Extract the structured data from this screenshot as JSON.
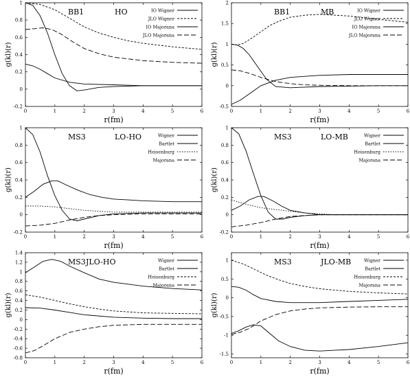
{
  "line_styles": {
    "solid": "",
    "long-dash": "7,3",
    "short-dash": "3,2",
    "dotted": "1.5,2"
  },
  "chart_data": [
    {
      "type": "line",
      "title_left": "BB1",
      "title_right": "HO",
      "xlabel": "r(fm)",
      "ylabel": "g(kl)(r)",
      "xlim": [
        0,
        6
      ],
      "ylim": [
        -0.2,
        1
      ],
      "xticks": [
        "0",
        "1",
        "2",
        "3",
        "4",
        "5",
        "6"
      ],
      "yticks": [
        "-0.2",
        "0",
        "0.2",
        "0.4",
        "0.6",
        "0.8",
        "1"
      ],
      "legend_placement": "top-right",
      "series": [
        {
          "name": "IO  Wigner",
          "style": "solid",
          "x": [
            0,
            0.25,
            0.5,
            0.75,
            1,
            1.25,
            1.5,
            1.75,
            2,
            2.5,
            3,
            4,
            5,
            6
          ],
          "y": [
            1.0,
            0.97,
            0.85,
            0.65,
            0.4,
            0.18,
            0.04,
            -0.02,
            -0.01,
            0.02,
            0.03,
            0.04,
            0.04,
            0.04
          ]
        },
        {
          "name": "JLO  Wigner",
          "style": "short-dash",
          "x": [
            0,
            0.5,
            1,
            1.5,
            2,
            2.5,
            3,
            3.5,
            4,
            5,
            6
          ],
          "y": [
            1.0,
            0.98,
            0.92,
            0.82,
            0.72,
            0.65,
            0.6,
            0.56,
            0.53,
            0.49,
            0.46
          ]
        },
        {
          "name": "IO  Majorana",
          "style": "solid",
          "x": [
            0,
            0.25,
            0.5,
            0.75,
            1,
            1.5,
            2,
            3,
            4,
            5,
            6
          ],
          "y": [
            0.29,
            0.27,
            0.23,
            0.18,
            0.13,
            0.08,
            0.06,
            0.05,
            0.04,
            0.04,
            0.04
          ]
        },
        {
          "name": "JLO  Majorana",
          "style": "long-dash",
          "x": [
            0,
            0.3,
            0.6,
            0.9,
            1.2,
            1.6,
            2,
            2.5,
            3,
            4,
            5,
            6
          ],
          "y": [
            0.69,
            0.7,
            0.71,
            0.69,
            0.64,
            0.55,
            0.47,
            0.41,
            0.37,
            0.33,
            0.31,
            0.3
          ]
        }
      ]
    },
    {
      "type": "line",
      "title_left": "BB1",
      "title_right": "MB",
      "xlabel": "r(fm)",
      "ylabel": "g(kl)(r)",
      "xlim": [
        0,
        6
      ],
      "ylim": [
        -0.5,
        2
      ],
      "xticks": [
        "0",
        "1",
        "2",
        "3",
        "4",
        "5",
        "6"
      ],
      "yticks": [
        "-0.5",
        "0",
        "0.5",
        "1",
        "1.5",
        "2"
      ],
      "legend_placement": "top-right",
      "series": [
        {
          "name": "IO  Wigner",
          "style": "solid",
          "x": [
            0,
            0.2,
            0.4,
            0.6,
            0.8,
            1,
            1.2,
            1.5,
            2,
            3,
            4,
            5,
            6
          ],
          "y": [
            1.0,
            0.98,
            0.9,
            0.75,
            0.55,
            0.35,
            0.15,
            -0.02,
            -0.05,
            -0.02,
            -0.01,
            0,
            0
          ]
        },
        {
          "name": "JLO  Wigner",
          "style": "short-dash",
          "x": [
            0,
            0.2,
            0.4,
            0.7,
            1,
            1.3,
            1.6,
            2,
            2.5,
            3,
            3.5,
            4,
            5,
            6
          ],
          "y": [
            1.0,
            0.98,
            1.02,
            1.15,
            1.3,
            1.45,
            1.55,
            1.65,
            1.7,
            1.72,
            1.7,
            1.68,
            1.6,
            1.53
          ]
        },
        {
          "name": "IO  Majorana",
          "style": "solid",
          "x": [
            0,
            0.3,
            0.6,
            1,
            1.5,
            2,
            3,
            4,
            5,
            6
          ],
          "y": [
            -0.45,
            -0.35,
            -0.2,
            0,
            0.13,
            0.2,
            0.25,
            0.27,
            0.27,
            0.27
          ]
        },
        {
          "name": "JLO  Majorana",
          "style": "long-dash",
          "x": [
            0,
            0.3,
            0.6,
            1,
            1.5,
            2,
            2.5,
            3,
            4,
            5,
            6
          ],
          "y": [
            0.38,
            0.36,
            0.3,
            0.2,
            0.1,
            0.05,
            0.02,
            0.01,
            0,
            0,
            0
          ]
        }
      ]
    },
    {
      "type": "line",
      "title_left": "MS3",
      "title_right": "LO-HO",
      "xlabel": "r(fm)",
      "ylabel": "g(kl)(r)",
      "xlim": [
        0,
        6
      ],
      "ylim": [
        -0.2,
        1
      ],
      "xticks": [
        "0",
        "1",
        "2",
        "3",
        "4",
        "5",
        "6"
      ],
      "yticks": [
        "-0.2",
        "0",
        "0.2",
        "0.4",
        "0.6",
        "0.8",
        "1"
      ],
      "legend_placement": "top-right",
      "series": [
        {
          "name": "Wigner",
          "style": "solid",
          "x": [
            0,
            0.25,
            0.5,
            0.75,
            1,
            1.25,
            1.5,
            1.75,
            2,
            2.5,
            3,
            4,
            5,
            6
          ],
          "y": [
            1.0,
            0.92,
            0.72,
            0.45,
            0.22,
            0.05,
            -0.05,
            -0.07,
            -0.05,
            -0.01,
            0.01,
            0.02,
            0.02,
            0.02
          ]
        },
        {
          "name": "Bartlet",
          "style": "solid",
          "x": [
            0,
            0.3,
            0.6,
            0.9,
            1.1,
            1.4,
            1.8,
            2.2,
            2.6,
            3,
            3.5,
            4,
            5,
            6
          ],
          "y": [
            0.2,
            0.27,
            0.35,
            0.39,
            0.39,
            0.34,
            0.28,
            0.23,
            0.2,
            0.18,
            0.17,
            0.16,
            0.15,
            0.15
          ]
        },
        {
          "name": "Heisenburg",
          "style": "dotted",
          "x": [
            0,
            0.5,
            1,
            1.5,
            2,
            2.5,
            3,
            4,
            5,
            6
          ],
          "y": [
            0.1,
            0.1,
            0.09,
            0.07,
            0.05,
            0.04,
            0.03,
            0.03,
            0.03,
            0.03
          ]
        },
        {
          "name": "Majorana",
          "style": "long-dash",
          "x": [
            0,
            0.5,
            1,
            1.5,
            2,
            2.5,
            3,
            4,
            5,
            6
          ],
          "y": [
            -0.13,
            -0.12,
            -0.1,
            -0.06,
            -0.03,
            -0.01,
            0,
            0.01,
            0.01,
            0.01
          ]
        }
      ]
    },
    {
      "type": "line",
      "title_left": "MS3",
      "title_right": "LO-MB",
      "xlabel": "r(fm)",
      "ylabel": "g(kl)(r)",
      "xlim": [
        0,
        6
      ],
      "ylim": [
        -0.2,
        1
      ],
      "xticks": [
        "0",
        "1",
        "2",
        "3",
        "4",
        "5",
        "6"
      ],
      "yticks": [
        "-0.2",
        "0",
        "0.2",
        "0.4",
        "0.6",
        "0.8",
        "1"
      ],
      "legend_placement": "top-right",
      "series": [
        {
          "name": "Wigner",
          "style": "solid",
          "x": [
            0,
            0.25,
            0.5,
            0.75,
            1,
            1.25,
            1.5,
            1.75,
            2,
            2.5,
            3,
            3.5,
            4,
            5,
            6
          ],
          "y": [
            1.0,
            0.93,
            0.73,
            0.47,
            0.22,
            0.03,
            -0.05,
            -0.05,
            -0.03,
            -0.01,
            0,
            0,
            0,
            0,
            0
          ]
        },
        {
          "name": "Bartlet",
          "style": "solid",
          "x": [
            0,
            0.3,
            0.6,
            0.9,
            1.1,
            1.4,
            1.7,
            2,
            2.5,
            3,
            3.5,
            4,
            5,
            6
          ],
          "y": [
            0.05,
            0.1,
            0.17,
            0.21,
            0.21,
            0.16,
            0.1,
            0.05,
            0.02,
            0,
            0,
            0,
            0,
            0
          ]
        },
        {
          "name": "Heisenburg",
          "style": "dotted",
          "x": [
            0,
            0.5,
            1,
            1.5,
            2,
            2.5,
            3,
            3.5,
            4,
            5,
            6
          ],
          "y": [
            0.17,
            0.12,
            0.08,
            0.06,
            0.04,
            0.02,
            0.01,
            0,
            0,
            0,
            0
          ]
        },
        {
          "name": "Majorana",
          "style": "long-dash",
          "x": [
            0,
            0.5,
            1,
            1.5,
            2,
            2.5,
            3,
            3.5,
            4,
            5,
            6
          ],
          "y": [
            -0.14,
            -0.12,
            -0.09,
            -0.05,
            -0.02,
            -0.01,
            0,
            0,
            0,
            0,
            0
          ]
        }
      ]
    },
    {
      "type": "line",
      "title_left": "MS3",
      "title_right": "JLO-HO",
      "xlabel": "r(fm)",
      "ylabel": "g(kl)(r)",
      "xlim": [
        0,
        6
      ],
      "ylim": [
        -0.8,
        1.4
      ],
      "xticks": [
        "0",
        "1",
        "2",
        "3",
        "4",
        "5",
        "6"
      ],
      "yticks": [
        "-0.8",
        "-0.6",
        "-0.4",
        "-0.2",
        "0",
        "0.2",
        "0.4",
        "0.6",
        "0.8",
        "1",
        "1.2",
        "1.4"
      ],
      "legend_placement": "top-right",
      "series": [
        {
          "name": "Wigner",
          "style": "solid",
          "x": [
            0,
            0.3,
            0.6,
            0.9,
            1.2,
            1.5,
            2,
            2.5,
            3,
            4,
            5,
            6
          ],
          "y": [
            0.98,
            1.1,
            1.22,
            1.26,
            1.22,
            1.12,
            0.98,
            0.85,
            0.78,
            0.7,
            0.65,
            0.62
          ]
        },
        {
          "name": "Bartlet",
          "style": "solid",
          "x": [
            0,
            0.5,
            1,
            1.5,
            2,
            3,
            4,
            5,
            6
          ],
          "y": [
            0.25,
            0.24,
            0.2,
            0.15,
            0.1,
            0.05,
            0.03,
            0.02,
            0.02
          ]
        },
        {
          "name": "Heisenburg",
          "style": "short-dash",
          "x": [
            0,
            0.5,
            1,
            1.5,
            2,
            2.5,
            3,
            4,
            5,
            6
          ],
          "y": [
            0.52,
            0.47,
            0.4,
            0.33,
            0.27,
            0.22,
            0.18,
            0.14,
            0.13,
            0.12
          ]
        },
        {
          "name": "Majorana",
          "style": "long-dash",
          "x": [
            0,
            0.3,
            0.6,
            1,
            1.5,
            2,
            2.5,
            3,
            4,
            5,
            6
          ],
          "y": [
            -0.7,
            -0.65,
            -0.55,
            -0.4,
            -0.27,
            -0.2,
            -0.15,
            -0.12,
            -0.1,
            -0.1,
            -0.1
          ]
        }
      ]
    },
    {
      "type": "line",
      "title_left": "MS3",
      "title_right": "JLO-MB",
      "xlabel": "r(fm)",
      "ylabel": "g(kl)(r)",
      "xlim": [
        0,
        6
      ],
      "ylim": [
        -1.6,
        1.2
      ],
      "xticks": [
        "0",
        "1",
        "2",
        "3",
        "4",
        "5",
        "6"
      ],
      "yticks": [
        "-1.5",
        "-1",
        "-0.5",
        "0",
        "0.5",
        "1"
      ],
      "legend_placement": "top-right",
      "series": [
        {
          "name": "Wigner",
          "style": "solid",
          "x": [
            0,
            0.25,
            0.5,
            0.75,
            1,
            1.3,
            1.6,
            2,
            2.5,
            3,
            3.5,
            4,
            5,
            6
          ],
          "y": [
            -0.95,
            -0.88,
            -0.78,
            -0.72,
            -0.75,
            -0.95,
            -1.15,
            -1.3,
            -1.4,
            -1.42,
            -1.4,
            -1.38,
            -1.3,
            -1.2
          ]
        },
        {
          "name": "Bartlet",
          "style": "solid",
          "x": [
            0,
            0.25,
            0.5,
            0.75,
            1,
            1.5,
            2,
            3,
            4,
            5,
            6
          ],
          "y": [
            0.3,
            0.28,
            0.2,
            0.08,
            -0.02,
            -0.1,
            -0.13,
            -0.13,
            -0.1,
            -0.07,
            -0.04
          ]
        },
        {
          "name": "Heisenburg",
          "style": "short-dash",
          "x": [
            0,
            0.4,
            0.8,
            1.2,
            1.6,
            2,
            2.5,
            3,
            4,
            5,
            6
          ],
          "y": [
            1.0,
            0.9,
            0.75,
            0.6,
            0.48,
            0.38,
            0.3,
            0.24,
            0.17,
            0.13,
            0.1
          ]
        },
        {
          "name": "Majorana",
          "style": "long-dash",
          "x": [
            0,
            0.3,
            0.6,
            1,
            1.5,
            2,
            2.5,
            3,
            4,
            5,
            6
          ],
          "y": [
            -0.98,
            -0.92,
            -0.82,
            -0.62,
            -0.45,
            -0.35,
            -0.3,
            -0.27,
            -0.25,
            -0.24,
            -0.24
          ]
        }
      ]
    }
  ]
}
